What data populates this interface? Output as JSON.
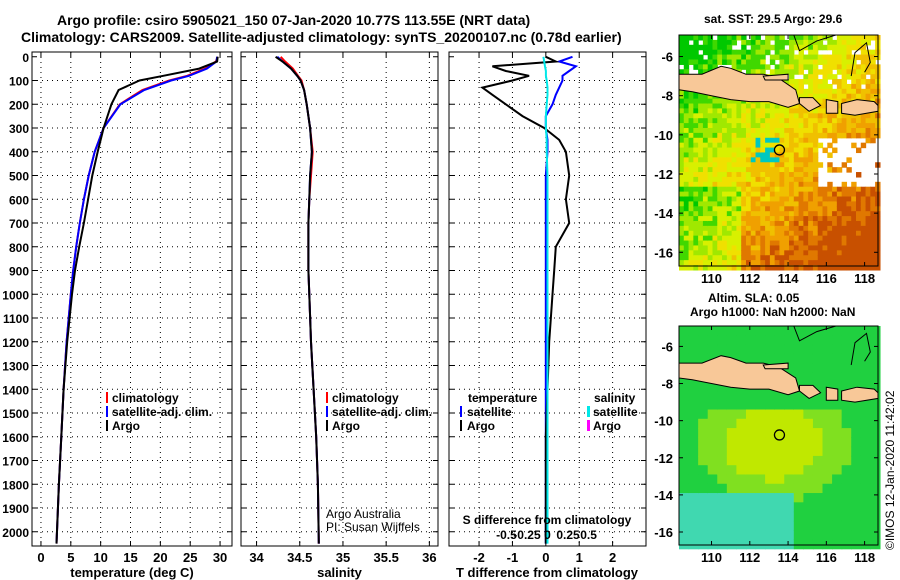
{
  "title1": "Argo profile: csiro 5905021_150 07-Jan-2020 10.77S 113.55E (NRT data)",
  "title2": "Climatology: CARS2009. Satellite-adjusted climatology: synTS_20200107.nc (0.78d earlier)",
  "footer": "©IMOS 12-Jan-2020 11:42:02",
  "colors": {
    "climatology": "#ff0000",
    "satellite": "#0000ff",
    "argo": "#000000",
    "sal_sat": "#00e8e8",
    "sal_argo": "#ff00ff",
    "land": "#f8c898"
  },
  "chart_data": [
    {
      "type": "line",
      "name": "temperature",
      "xlabel": "temperature (deg C)",
      "xlim": [
        -1.5,
        32
      ],
      "ylim": [
        2060,
        -20
      ],
      "xticks": [
        "0",
        "5",
        "10",
        "15",
        "20",
        "25",
        "30"
      ],
      "yticks": [
        "0",
        "100",
        "200",
        "300",
        "400",
        "500",
        "600",
        "700",
        "800",
        "900",
        "1000",
        "1100",
        "1200",
        "1300",
        "1400",
        "1500",
        "1600",
        "1700",
        "1800",
        "1900",
        "2000"
      ],
      "depth": [
        0,
        20,
        50,
        80,
        100,
        140,
        200,
        300,
        400,
        500,
        600,
        700,
        800,
        900,
        1000,
        1200,
        1400,
        1600,
        1800,
        2050
      ],
      "series": [
        {
          "name": "climatology",
          "values": [
            29.6,
            29.3,
            27.5,
            24.5,
            21.5,
            17.0,
            13.2,
            10.5,
            9.0,
            8.0,
            7.2,
            6.5,
            5.9,
            5.4,
            5.0,
            4.3,
            3.8,
            3.4,
            3.0,
            2.6
          ]
        },
        {
          "name": "satellite-adj. clim.",
          "values": [
            29.5,
            29.4,
            27.8,
            24.8,
            21.8,
            17.3,
            13.3,
            10.5,
            9.0,
            8.0,
            7.2,
            6.5,
            5.9,
            5.4,
            5.0,
            4.3,
            3.8,
            3.4,
            3.0,
            2.6
          ]
        },
        {
          "name": "Argo",
          "values": [
            29.6,
            29.5,
            26.5,
            20.5,
            16.5,
            13.0,
            11.8,
            10.5,
            9.5,
            8.6,
            7.9,
            7.2,
            6.4,
            5.7,
            5.2,
            4.4,
            3.8,
            3.4,
            3.0,
            2.6
          ]
        }
      ],
      "legend": [
        "climatology",
        "satellite-adj. clim.",
        "Argo"
      ]
    },
    {
      "type": "line",
      "name": "salinity",
      "xlabel": "salinity",
      "xlim": [
        33.82,
        36.1
      ],
      "ylim": [
        2060,
        -20
      ],
      "xticks": [
        "34",
        "34.5",
        "35",
        "35.5",
        "36"
      ],
      "depth": [
        0,
        20,
        50,
        80,
        100,
        140,
        200,
        300,
        400,
        500,
        600,
        700,
        800,
        900,
        1000,
        1200,
        1400,
        1600,
        1800,
        2050
      ],
      "series": [
        {
          "name": "climatology",
          "values": [
            34.28,
            34.33,
            34.42,
            34.48,
            34.52,
            34.55,
            34.58,
            34.62,
            34.65,
            34.63,
            34.61,
            34.6,
            34.6,
            34.6,
            34.61,
            34.63,
            34.66,
            34.69,
            34.71,
            34.72
          ]
        },
        {
          "name": "satellite-adj. clim.",
          "values": [
            34.24,
            34.3,
            34.4,
            34.47,
            34.51,
            34.55,
            34.58,
            34.62,
            34.64,
            34.62,
            34.61,
            34.6,
            34.6,
            34.6,
            34.61,
            34.63,
            34.66,
            34.69,
            34.71,
            34.72
          ]
        },
        {
          "name": "Argo",
          "values": [
            34.22,
            34.3,
            34.4,
            34.47,
            34.51,
            34.55,
            34.58,
            34.62,
            34.64,
            34.62,
            34.61,
            34.6,
            34.6,
            34.6,
            34.61,
            34.63,
            34.66,
            34.69,
            34.71,
            34.72
          ]
        }
      ],
      "legend": [
        "climatology",
        "satellite-adj. clim.",
        "Argo"
      ],
      "annotation": [
        "Argo Australia",
        "PI: Susan Wijffels"
      ]
    },
    {
      "type": "line",
      "name": "difference",
      "xlabel": "T difference from climatology",
      "x2label": "S difference from climatology",
      "xlim": [
        -2.9,
        3.0
      ],
      "x2lim": [
        -1.2,
        1.2
      ],
      "ylim": [
        2060,
        -20
      ],
      "xticks": [
        "-2",
        "-1",
        "0",
        "1",
        "2"
      ],
      "x2ticks": [
        "-0.5",
        "-0.25",
        "0",
        "0.25",
        "0.5"
      ],
      "depth": [
        0,
        20,
        40,
        60,
        80,
        100,
        130,
        160,
        200,
        250,
        300,
        350,
        400,
        500,
        600,
        700,
        800,
        900,
        1000,
        1200,
        1400,
        1600,
        1800,
        2050
      ],
      "series": [
        {
          "name": "T satellite",
          "values": [
            0.8,
            0.4,
            0.9,
            0.7,
            0.5,
            0.5,
            0.4,
            0.3,
            0.2,
            0.0,
            0.0,
            0.05,
            0.05,
            0.0,
            0.0,
            0.0,
            0.0,
            0.0,
            0.0,
            0.0,
            0.0,
            0.0,
            0.0,
            0.0
          ]
        },
        {
          "name": "T Argo",
          "values": [
            0.0,
            0.3,
            -1.6,
            -1.2,
            -0.5,
            -1.0,
            -1.9,
            -1.6,
            -1.2,
            -0.7,
            -0.05,
            0.4,
            0.6,
            0.7,
            0.6,
            0.7,
            0.3,
            0.25,
            0.2,
            0.1,
            0.05,
            0.0,
            0.0,
            0.0
          ]
        },
        {
          "name": "S satellite",
          "values": [
            -0.05,
            -0.04,
            -0.03,
            -0.02,
            -0.02,
            -0.01,
            0,
            0,
            -0.01,
            -0.02,
            -0.02,
            -0.01,
            -0.01,
            0,
            0,
            0,
            0,
            0,
            0,
            0,
            0,
            0,
            0,
            0
          ]
        }
      ],
      "legend_t": [
        "temperature",
        "satellite",
        "Argo"
      ],
      "legend_s": [
        "salinity",
        "satellite",
        "Argo"
      ]
    }
  ],
  "map1": {
    "title": "sat. SST: 29.5 Argo: 29.6",
    "lon_ticks": [
      "110",
      "112",
      "114",
      "116",
      "118"
    ],
    "lat_ticks": [
      "-6",
      "-8",
      "-10",
      "-12",
      "-14",
      "-16"
    ],
    "float": {
      "lon": 113.55,
      "lat": -10.77
    }
  },
  "map2": {
    "title1": "Altim. SLA: 0.05",
    "title2": "Argo h1000: NaN h2000: NaN",
    "lon_ticks": [
      "110",
      "112",
      "114",
      "116",
      "118"
    ],
    "lat_ticks": [
      "-6",
      "-8",
      "-10",
      "-12",
      "-14",
      "-16"
    ],
    "float": {
      "lon": 113.55,
      "lat": -10.77
    }
  }
}
